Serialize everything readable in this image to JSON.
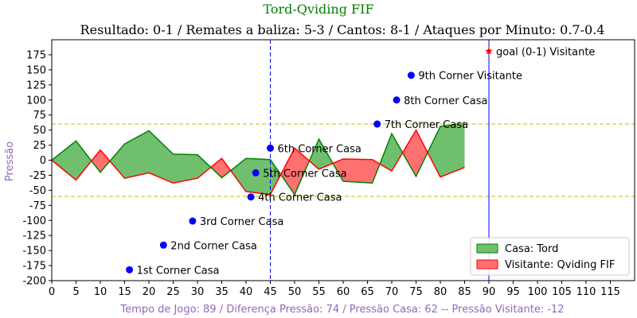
{
  "chart_data": {
    "type": "area",
    "title": "Tord-Qviding FIF",
    "subtitle": "Resultado: 0-1 / Remates a baliza: 5-3 / Cantos: 8-1 / Ataques por Minuto: 0.7-0.4",
    "ylabel": "Pressão",
    "xlabel": "Tempo de Jogo: 89 / Diferença Pressão: 74 / Pressão Casa: 62 -- Pressão Visitante: -12",
    "xlim": [
      0,
      120
    ],
    "ylim": [
      -200,
      200
    ],
    "x_ticks": [
      "0",
      "5",
      "10",
      "15",
      "20",
      "25",
      "30",
      "35",
      "40",
      "45",
      "50",
      "55",
      "60",
      "65",
      "70",
      "75",
      "80",
      "85",
      "90",
      "95",
      "100",
      "105",
      "110",
      "115"
    ],
    "y_ticks": [
      "175",
      "150",
      "125",
      "100",
      "75",
      "50",
      "25",
      "0",
      "-25",
      "-50",
      "-75",
      "-100",
      "-125",
      "-150",
      "-175",
      "-200"
    ],
    "series": [
      {
        "name": "Casa: Tord",
        "color": "#008000",
        "fill": "#6fbf6f",
        "x": [
          0,
          5,
          10,
          15,
          20,
          25,
          30,
          35,
          40,
          45,
          50,
          55,
          60,
          66,
          70,
          75,
          80,
          85
        ],
        "values": [
          0,
          32,
          -20,
          27,
          49,
          10,
          9,
          -29,
          3,
          1,
          -57,
          35,
          -35,
          -38,
          44,
          -27,
          56,
          61
        ]
      },
      {
        "name": "Visitante: Qviding FIF",
        "color": "#ff0000",
        "fill": "#ff7070",
        "x": [
          0,
          5,
          10,
          15,
          20,
          25,
          30,
          35,
          40,
          45,
          50,
          55,
          60,
          66,
          70,
          75,
          80,
          85
        ],
        "values": [
          0,
          -33,
          17,
          -30,
          -21,
          -38,
          -30,
          3,
          -52,
          -57,
          20,
          -15,
          2,
          1,
          -18,
          50,
          -28,
          -12
        ]
      }
    ],
    "reference_lines": {
      "horizontal": [
        60,
        -60
      ],
      "vertical_dashed": 45,
      "vertical_solid": 90
    },
    "annotations": [
      {
        "label": "1st Corner Casa",
        "x": 16,
        "y": -182,
        "marker": "dot",
        "color": "#0000ff"
      },
      {
        "label": "2nd Corner Casa",
        "x": 23,
        "y": -141,
        "marker": "dot",
        "color": "#0000ff"
      },
      {
        "label": "3rd Corner Casa",
        "x": 29,
        "y": -101,
        "marker": "dot",
        "color": "#0000ff"
      },
      {
        "label": "4th Corner Casa",
        "x": 41,
        "y": -61,
        "marker": "dot",
        "color": "#0000ff"
      },
      {
        "label": "5th Corner Casa",
        "x": 42,
        "y": -21,
        "marker": "dot",
        "color": "#0000ff"
      },
      {
        "label": "6th Corner Casa",
        "x": 45,
        "y": 20,
        "marker": "dot",
        "color": "#0000ff"
      },
      {
        "label": "7th Corner Casa",
        "x": 67,
        "y": 60,
        "marker": "dot",
        "color": "#0000ff"
      },
      {
        "label": "8th Corner Casa",
        "x": 71,
        "y": 100,
        "marker": "dot",
        "color": "#0000ff"
      },
      {
        "label": "9th Corner Visitante",
        "x": 74,
        "y": 141,
        "marker": "dot",
        "color": "#0000ff"
      },
      {
        "label": "goal (0-1) Visitante",
        "x": 90,
        "y": 181,
        "marker": "star",
        "color": "#ff0000"
      }
    ],
    "legend": {
      "placement": "lower-right",
      "entries": [
        "Casa: Tord",
        "Visitante: Qviding FIF"
      ]
    },
    "grid": false
  }
}
